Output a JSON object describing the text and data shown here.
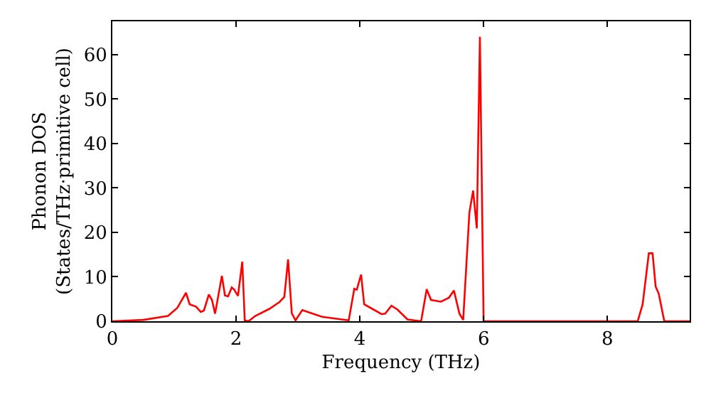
{
  "chart_data": {
    "type": "line",
    "xlabel": "Frequency (THz)",
    "ylabel": "Phonon DOS\n(States/THz·primitive cell)",
    "x": [
      0,
      0.5,
      0.9,
      1.05,
      1.19,
      1.25,
      1.35,
      1.43,
      1.48,
      1.56,
      1.61,
      1.66,
      1.77,
      1.82,
      1.87,
      1.93,
      1.97,
      2.03,
      2.1,
      2.14,
      2.2,
      2.31,
      2.54,
      2.7,
      2.78,
      2.84,
      2.9,
      2.96,
      3.07,
      3.26,
      3.39,
      3.82,
      3.91,
      3.95,
      4.02,
      4.07,
      4.2,
      4.35,
      4.41,
      4.51,
      4.61,
      4.77,
      4.99,
      5.08,
      5.15,
      5.31,
      5.44,
      5.52,
      5.61,
      5.67,
      5.77,
      5.83,
      5.89,
      5.94,
      6.0,
      8.49,
      8.57,
      8.67,
      8.73,
      8.78,
      8.83,
      8.92,
      9.33
    ],
    "series": [
      {
        "color": "#ff0000",
        "values": [
          0,
          0.3,
          1.2,
          3,
          6.4,
          3.8,
          3.3,
          2.1,
          2.4,
          6.0,
          4.8,
          1.7,
          10.2,
          5.8,
          5.6,
          7.6,
          7.1,
          5.7,
          13.4,
          0.2,
          0,
          1.2,
          2.8,
          4.3,
          5.5,
          13.9,
          1.8,
          0.2,
          2.5,
          1.6,
          1.0,
          0.2,
          7.3,
          7.1,
          10.5,
          3.8,
          2.8,
          1.6,
          1.7,
          3.5,
          2.6,
          0.4,
          0,
          7.2,
          4.8,
          4.4,
          5.3,
          6.9,
          1.7,
          0.3,
          24.4,
          29.4,
          20.9,
          64,
          0,
          0,
          3.8,
          15.3,
          15.3,
          7.8,
          6.2,
          0,
          0
        ]
      }
    ],
    "xlim": [
      0,
      9.33
    ],
    "xticks": [
      0,
      2,
      4,
      6,
      8
    ],
    "ylim": [
      0,
      67.5
    ],
    "yticks": [
      0,
      10,
      20,
      30,
      40,
      50,
      60
    ],
    "marker": "none",
    "line_style": "solid"
  }
}
